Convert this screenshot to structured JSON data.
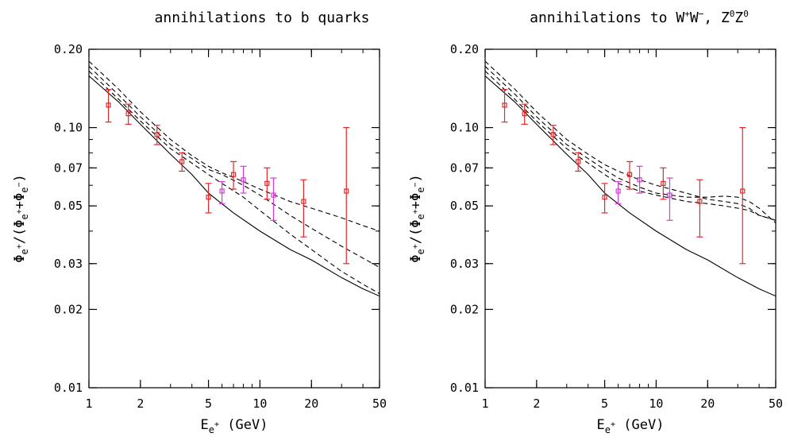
{
  "chart_data": [
    {
      "type": "scatter",
      "title_parts": [
        "annihilations to b quarks"
      ],
      "xlabel_main": "E",
      "xlabel_sub": "e",
      "xlabel_sup": "+",
      "xlabel_unit": " (GeV)",
      "ylabel_parts": [
        "Φ",
        "e",
        "+",
        "/(Φ",
        "e",
        "+",
        "+Φ",
        "e",
        "−",
        ")"
      ],
      "xscale": "log",
      "yscale": "log",
      "xlim": [
        1,
        50
      ],
      "ylim": [
        0.01,
        0.2
      ],
      "xticks": [
        1,
        2,
        5,
        10,
        20,
        50
      ],
      "xtick_labels": [
        "1",
        "2",
        "5",
        "10",
        "20",
        "50"
      ],
      "yticks": [
        0.01,
        0.02,
        0.03,
        0.05,
        0.07,
        0.1,
        0.2
      ],
      "ytick_labels": [
        "0.01",
        "0.02",
        "0.03",
        "0.05",
        "0.07",
        "0.10",
        "0.20"
      ],
      "grid": false,
      "series": [
        {
          "style": "solid",
          "color": "#000000",
          "x": [
            1,
            1.5,
            2,
            3,
            4,
            5,
            7,
            10,
            15,
            20,
            30,
            40,
            50
          ],
          "y": [
            0.158,
            0.125,
            0.103,
            0.079,
            0.066,
            0.056,
            0.047,
            0.04,
            0.034,
            0.031,
            0.0265,
            0.024,
            0.0225
          ]
        },
        {
          "style": "dashed",
          "color": "#000000",
          "x": [
            1,
            1.5,
            2,
            3,
            4,
            5,
            6,
            8,
            10,
            15,
            20,
            30,
            40,
            50
          ],
          "y": [
            0.18,
            0.14,
            0.115,
            0.09,
            0.078,
            0.071,
            0.067,
            0.062,
            0.058,
            0.052,
            0.049,
            0.045,
            0.042,
            0.04
          ]
        },
        {
          "style": "dashed",
          "color": "#000000",
          "x": [
            1,
            1.5,
            2,
            3,
            4,
            5,
            6,
            8,
            10,
            15,
            20,
            30,
            40,
            50
          ],
          "y": [
            0.172,
            0.133,
            0.11,
            0.086,
            0.076,
            0.069,
            0.066,
            0.06,
            0.055,
            0.046,
            0.041,
            0.035,
            0.0315,
            0.029
          ]
        },
        {
          "style": "dashed",
          "color": "#000000",
          "x": [
            1,
            1.5,
            2,
            3,
            4,
            5,
            6,
            8,
            10,
            15,
            20,
            30,
            40,
            50
          ],
          "y": [
            0.165,
            0.128,
            0.106,
            0.083,
            0.073,
            0.066,
            0.061,
            0.054,
            0.048,
            0.039,
            0.034,
            0.028,
            0.025,
            0.023
          ]
        }
      ],
      "points": [
        {
          "color": "#e8262a",
          "x": [
            1.3,
            1.7,
            2.5,
            3.5,
            5,
            7,
            11,
            18,
            32
          ],
          "y": [
            0.122,
            0.113,
            0.094,
            0.074,
            0.054,
            0.066,
            0.061,
            0.052,
            0.057
          ],
          "ylo": [
            0.105,
            0.103,
            0.086,
            0.068,
            0.047,
            0.058,
            0.053,
            0.038,
            0.03
          ],
          "yhi": [
            0.14,
            0.123,
            0.102,
            0.08,
            0.061,
            0.074,
            0.07,
            0.063,
            0.1
          ]
        },
        {
          "color": "#d63ad6",
          "x": [
            6,
            8,
            12
          ],
          "y": [
            0.057,
            0.063,
            0.055
          ],
          "ylo": [
            0.051,
            0.056,
            0.044
          ],
          "yhi": [
            0.062,
            0.071,
            0.064
          ]
        }
      ]
    },
    {
      "type": "scatter",
      "title_parts": [
        "annihilations to W",
        "+",
        "W",
        "−",
        ", Z",
        "0",
        "Z",
        "0"
      ],
      "xlabel_main": "E",
      "xlabel_sub": "e",
      "xlabel_sup": "+",
      "xlabel_unit": " (GeV)",
      "ylabel_parts": [
        "Φ",
        "e",
        "+",
        "/(Φ",
        "e",
        "+",
        "+Φ",
        "e",
        "−",
        ")"
      ],
      "xscale": "log",
      "yscale": "log",
      "xlim": [
        1,
        50
      ],
      "ylim": [
        0.01,
        0.2
      ],
      "xticks": [
        1,
        2,
        5,
        10,
        20,
        50
      ],
      "xtick_labels": [
        "1",
        "2",
        "5",
        "10",
        "20",
        "50"
      ],
      "yticks": [
        0.01,
        0.02,
        0.03,
        0.05,
        0.07,
        0.1,
        0.2
      ],
      "ytick_labels": [
        "0.01",
        "0.02",
        "0.03",
        "0.05",
        "0.07",
        "0.10",
        "0.20"
      ],
      "grid": false,
      "series": [
        {
          "style": "solid",
          "color": "#000000",
          "x": [
            1,
            1.5,
            2,
            3,
            4,
            5,
            7,
            10,
            15,
            20,
            30,
            40,
            50
          ],
          "y": [
            0.158,
            0.125,
            0.103,
            0.079,
            0.066,
            0.056,
            0.047,
            0.04,
            0.034,
            0.031,
            0.0265,
            0.024,
            0.0225
          ]
        },
        {
          "style": "dashed",
          "color": "#000000",
          "x": [
            1,
            1.5,
            2,
            3,
            4,
            5,
            6,
            8,
            10,
            15,
            20,
            25,
            30,
            35,
            40,
            50
          ],
          "y": [
            0.18,
            0.14,
            0.115,
            0.09,
            0.079,
            0.072,
            0.068,
            0.063,
            0.06,
            0.056,
            0.053,
            0.052,
            0.051,
            0.049,
            0.046,
            0.044
          ]
        },
        {
          "style": "dashed",
          "color": "#000000",
          "x": [
            1,
            1.5,
            2,
            3,
            4,
            5,
            6,
            8,
            10,
            15,
            20,
            25,
            30,
            35,
            40,
            50
          ],
          "y": [
            0.172,
            0.134,
            0.11,
            0.086,
            0.076,
            0.069,
            0.064,
            0.059,
            0.056,
            0.054,
            0.054,
            0.0545,
            0.054,
            0.052,
            0.049,
            0.043
          ]
        },
        {
          "style": "dashed",
          "color": "#000000",
          "x": [
            1,
            1.5,
            2,
            3,
            4,
            5,
            6,
            8,
            10,
            15,
            20,
            25,
            30,
            35,
            40,
            50
          ],
          "y": [
            0.165,
            0.128,
            0.106,
            0.083,
            0.073,
            0.066,
            0.061,
            0.057,
            0.055,
            0.052,
            0.051,
            0.05,
            0.049,
            0.048,
            0.046,
            0.044
          ]
        }
      ],
      "points": [
        {
          "color": "#e8262a",
          "x": [
            1.3,
            1.7,
            2.5,
            3.5,
            5,
            7,
            11,
            18,
            32
          ],
          "y": [
            0.122,
            0.113,
            0.094,
            0.074,
            0.054,
            0.066,
            0.061,
            0.052,
            0.057
          ],
          "ylo": [
            0.105,
            0.103,
            0.086,
            0.068,
            0.047,
            0.058,
            0.053,
            0.038,
            0.03
          ],
          "yhi": [
            0.14,
            0.123,
            0.102,
            0.08,
            0.061,
            0.074,
            0.07,
            0.063,
            0.1
          ]
        },
        {
          "color": "#d63ad6",
          "x": [
            6,
            8,
            12
          ],
          "y": [
            0.057,
            0.063,
            0.055
          ],
          "ylo": [
            0.051,
            0.056,
            0.044
          ],
          "yhi": [
            0.062,
            0.071,
            0.064
          ]
        }
      ]
    }
  ]
}
